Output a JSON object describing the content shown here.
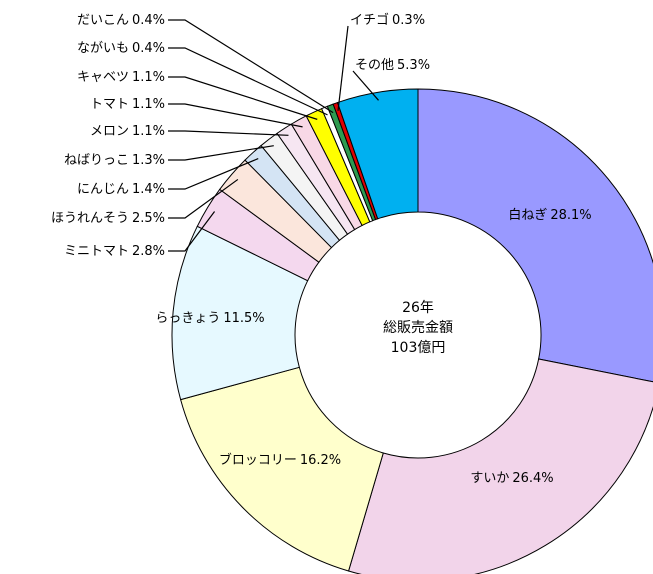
{
  "chart_data": {
    "type": "donut",
    "center_label": [
      "26年",
      "総販売金額",
      "103億円"
    ],
    "categories": [
      "白ねぎ",
      "すいか",
      "ブロッコリー",
      "らっきょう",
      "ミニトマト",
      "ほうれんそう",
      "にんじん",
      "ねばりっこ",
      "メロン",
      "トマト",
      "キャベツ",
      "ながいも",
      "だいこん",
      "イチゴ",
      "その他"
    ],
    "values": [
      28.1,
      26.4,
      16.2,
      11.5,
      2.8,
      2.5,
      1.4,
      1.3,
      1.1,
      1.1,
      1.1,
      0.4,
      0.4,
      0.3,
      5.3
    ],
    "value_labels": [
      "28.1%",
      "26.4%",
      "16.2%",
      "11.5%",
      "2.8%",
      "2.5%",
      "1.4%",
      "1.3%",
      "1.1%",
      "1.1%",
      "1.1%",
      "0.4%",
      "0.4%",
      "0.3%",
      "5.3%"
    ],
    "colors": [
      "#9999ff",
      "#f2d4ea",
      "#ffffcc",
      "#e6f9ff",
      "#f4d8ee",
      "#fbe6dc",
      "#d4e4f4",
      "#f4f4f4",
      "#f6e6f2",
      "#f8d8e6",
      "#ffff00",
      "#ffffff",
      "#2e9a50",
      "#e00000",
      "#00b0f0"
    ]
  }
}
